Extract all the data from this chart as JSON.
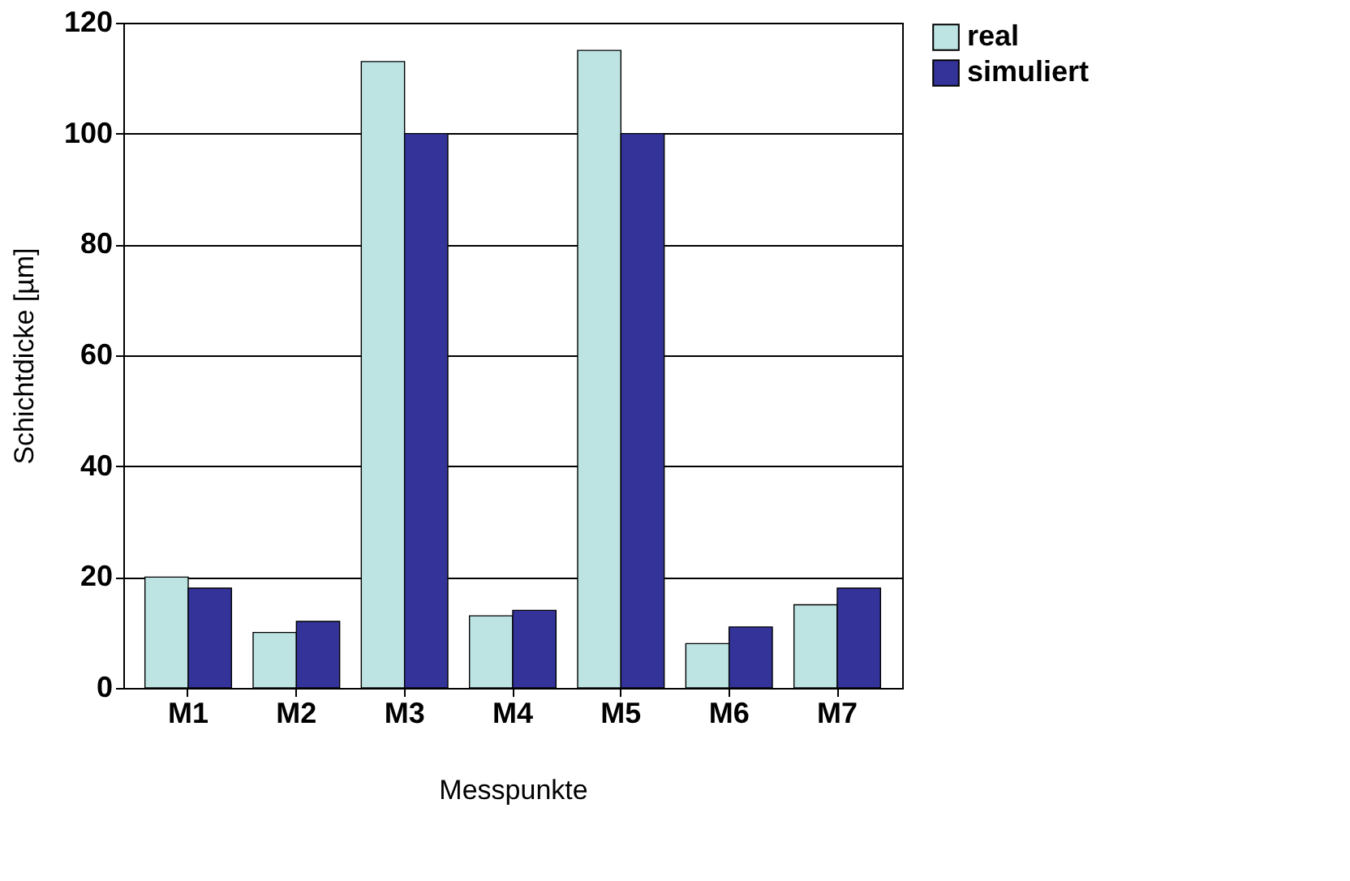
{
  "chart_data": {
    "type": "bar",
    "xlabel": "Messpunkte",
    "ylabel": "Schichtdicke [µm]",
    "categories": [
      "M1",
      "M2",
      "M3",
      "M4",
      "M5",
      "M6",
      "M7"
    ],
    "series": [
      {
        "name": "real",
        "color": "#bde3e3",
        "values": [
          20,
          10,
          113,
          13,
          115,
          8,
          15
        ]
      },
      {
        "name": "simuliert",
        "color": "#333399",
        "values": [
          18,
          12,
          100,
          14,
          100,
          11,
          18
        ]
      }
    ],
    "ylim": [
      0,
      120
    ],
    "yticks": [
      0,
      20,
      40,
      60,
      80,
      100,
      120
    ],
    "grid": "y",
    "legend": "right"
  }
}
